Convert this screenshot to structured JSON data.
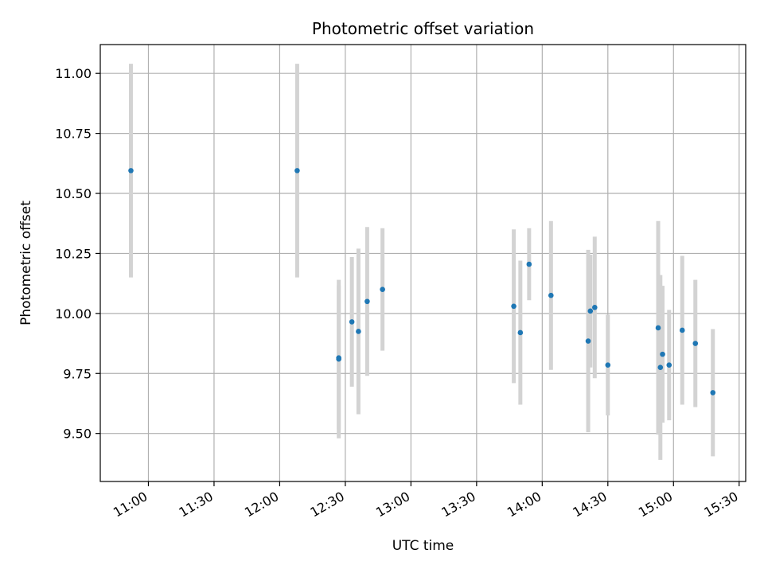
{
  "chart_data": {
    "type": "scatter",
    "title": "Photometric offset variation",
    "xlabel": "UTC time",
    "ylabel": "Photometric offset",
    "x_tick_labels": [
      "11:00",
      "11:30",
      "12:00",
      "12:30",
      "13:00",
      "13:30",
      "14:00",
      "14:30",
      "15:00",
      "15:30"
    ],
    "y_tick_labels": [
      "9.50",
      "9.75",
      "10.00",
      "10.25",
      "10.50",
      "10.75",
      "11.00"
    ],
    "xlim": [
      "10:38",
      "15:33"
    ],
    "ylim": [
      9.3,
      11.12
    ],
    "grid": true,
    "colors": {
      "point": "#1f77b4",
      "errorbar": "#d3d3d3",
      "grid": "#b0b0b0",
      "axis": "#000000"
    },
    "series": [
      {
        "points": [
          {
            "x": "10:52",
            "y": 10.595,
            "err": 0.445
          },
          {
            "x": "12:08",
            "y": 10.595,
            "err": 0.445
          },
          {
            "x": "12:27",
            "y": 9.815,
            "err": 0.3
          },
          {
            "x": "12:27",
            "y": 9.81,
            "err": 0.33
          },
          {
            "x": "12:33",
            "y": 9.965,
            "err": 0.27
          },
          {
            "x": "12:36",
            "y": 9.925,
            "err": 0.345
          },
          {
            "x": "12:40",
            "y": 10.05,
            "err": 0.31
          },
          {
            "x": "12:47",
            "y": 10.1,
            "err": 0.255
          },
          {
            "x": "13:47",
            "y": 10.03,
            "err": 0.32
          },
          {
            "x": "13:50",
            "y": 9.92,
            "err": 0.3
          },
          {
            "x": "13:54",
            "y": 10.205,
            "err": 0.15
          },
          {
            "x": "14:04",
            "y": 10.075,
            "err": 0.31
          },
          {
            "x": "14:21",
            "y": 9.885,
            "err": 0.38
          },
          {
            "x": "14:22",
            "y": 10.01,
            "err": 0.235
          },
          {
            "x": "14:24",
            "y": 10.025,
            "err": 0.295
          },
          {
            "x": "14:30",
            "y": 9.785,
            "err": 0.21
          },
          {
            "x": "14:53",
            "y": 9.94,
            "err": 0.445
          },
          {
            "x": "14:54",
            "y": 9.775,
            "err": 0.385
          },
          {
            "x": "14:55",
            "y": 9.83,
            "err": 0.285
          },
          {
            "x": "14:58",
            "y": 9.785,
            "err": 0.23
          },
          {
            "x": "15:04",
            "y": 9.93,
            "err": 0.31
          },
          {
            "x": "15:10",
            "y": 9.875,
            "err": 0.265
          },
          {
            "x": "15:18",
            "y": 9.67,
            "err": 0.265
          }
        ]
      }
    ]
  }
}
